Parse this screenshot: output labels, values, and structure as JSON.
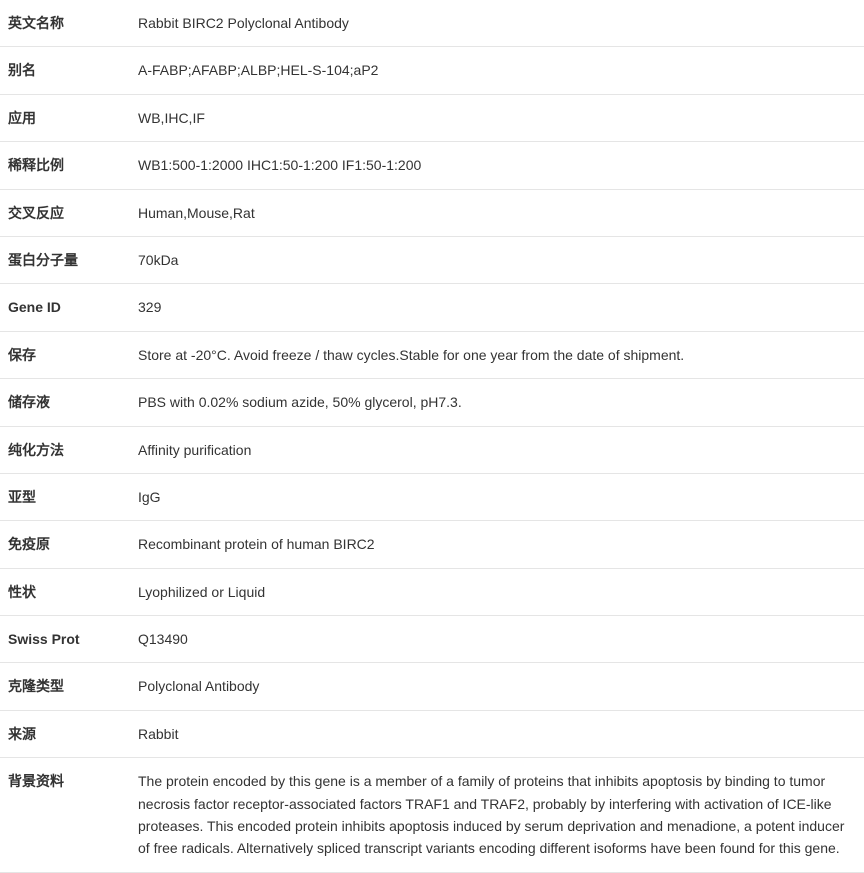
{
  "table": {
    "rows": [
      {
        "label": "英文名称",
        "value": "Rabbit BIRC2 Polyclonal Antibody"
      },
      {
        "label": "别名",
        "value": "A-FABP;AFABP;ALBP;HEL-S-104;aP2"
      },
      {
        "label": "应用",
        "value": "WB,IHC,IF"
      },
      {
        "label": "稀释比例",
        "value": "WB1:500-1:2000 IHC1:50-1:200 IF1:50-1:200"
      },
      {
        "label": "交叉反应",
        "value": "Human,Mouse,Rat"
      },
      {
        "label": "蛋白分子量",
        "value": "70kDa"
      },
      {
        "label": "Gene ID",
        "value": "329"
      },
      {
        "label": "保存",
        "value": "Store at -20°C. Avoid freeze / thaw cycles.Stable for one year from the date of shipment."
      },
      {
        "label": "储存液",
        "value": "PBS with 0.02% sodium azide, 50% glycerol, pH7.3."
      },
      {
        "label": "纯化方法",
        "value": "Affinity purification"
      },
      {
        "label": "亚型",
        "value": "IgG"
      },
      {
        "label": "免疫原",
        "value": "Recombinant protein of human BIRC2"
      },
      {
        "label": "性状",
        "value": "Lyophilized or Liquid"
      },
      {
        "label": "Swiss Prot",
        "value": "Q13490"
      },
      {
        "label": "克隆类型",
        "value": "Polyclonal Antibody"
      },
      {
        "label": "来源",
        "value": "Rabbit"
      },
      {
        "label": "背景资料",
        "value": "The protein encoded by this gene is a member of a family of proteins that inhibits apoptosis by binding to tumor necrosis factor receptor-associated factors TRAF1 and TRAF2, probably by interfering with activation of ICE-like proteases. This encoded protein inhibits apoptosis induced by serum deprivation and menadione, a potent inducer of free radicals. Alternatively spliced transcript variants encoding different isoforms have been found for this gene."
      }
    ],
    "label_width": 130,
    "border_color": "#e5e5e5",
    "text_color": "#333333",
    "background_color": "#ffffff",
    "font_size": 14,
    "row_padding_v": 12,
    "row_padding_h": 8
  }
}
